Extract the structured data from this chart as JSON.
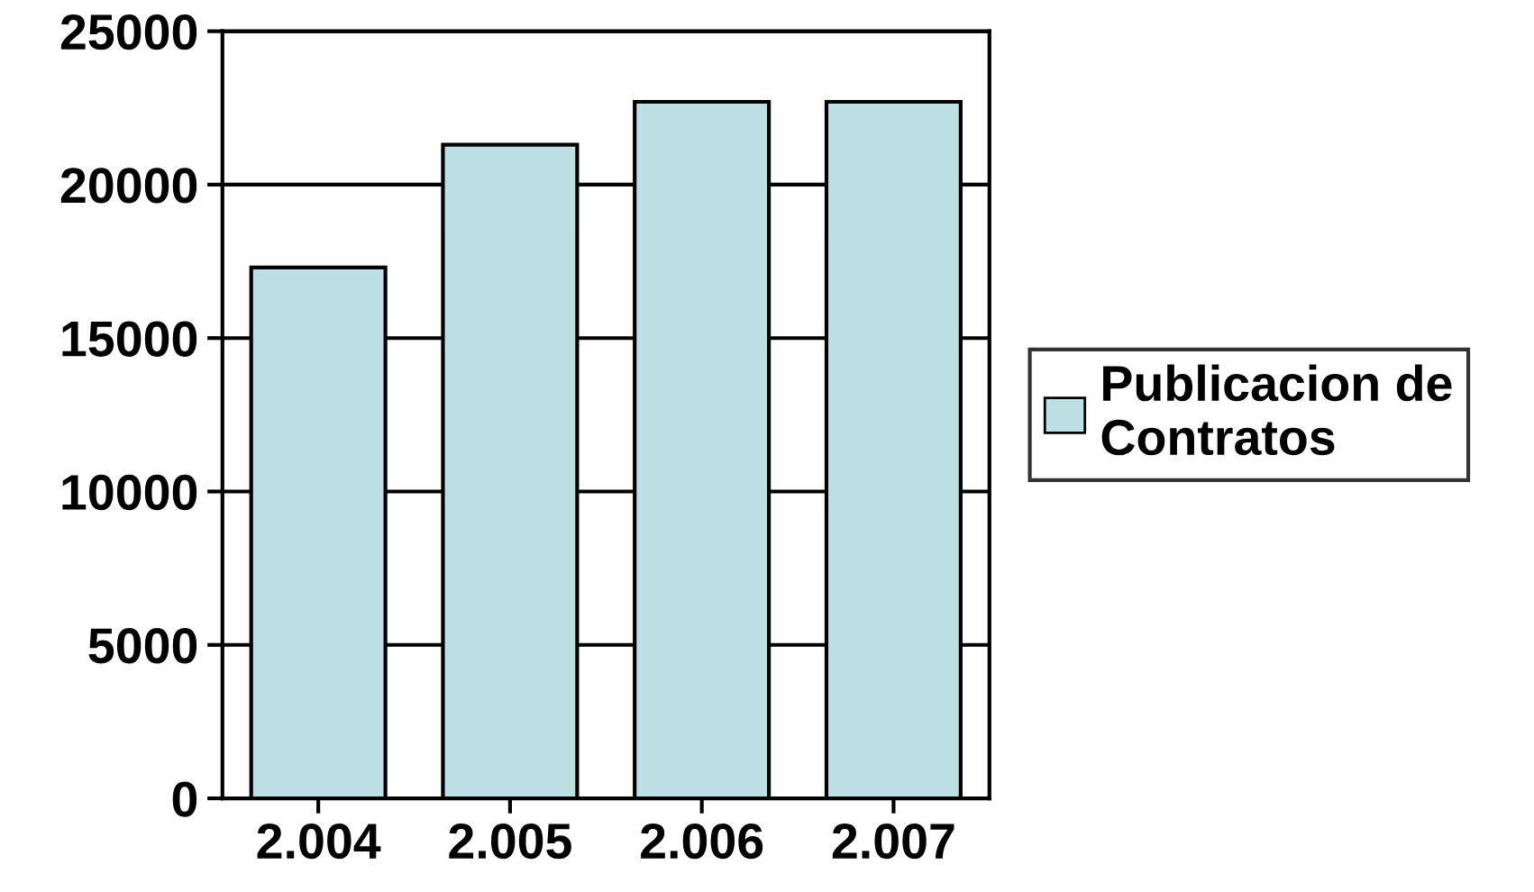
{
  "chart_data": {
    "type": "bar",
    "categories": [
      "2.004",
      "2.005",
      "2.006",
      "2.007"
    ],
    "series": [
      {
        "name": "Publicacion de\nContratos",
        "color": "#bde0e4",
        "values": [
          17300,
          21300,
          22700,
          22700
        ]
      }
    ],
    "ylim": [
      0,
      25000
    ],
    "yticks": [
      0,
      5000,
      10000,
      15000,
      20000,
      25000
    ],
    "grid": "y",
    "legend": "right"
  }
}
